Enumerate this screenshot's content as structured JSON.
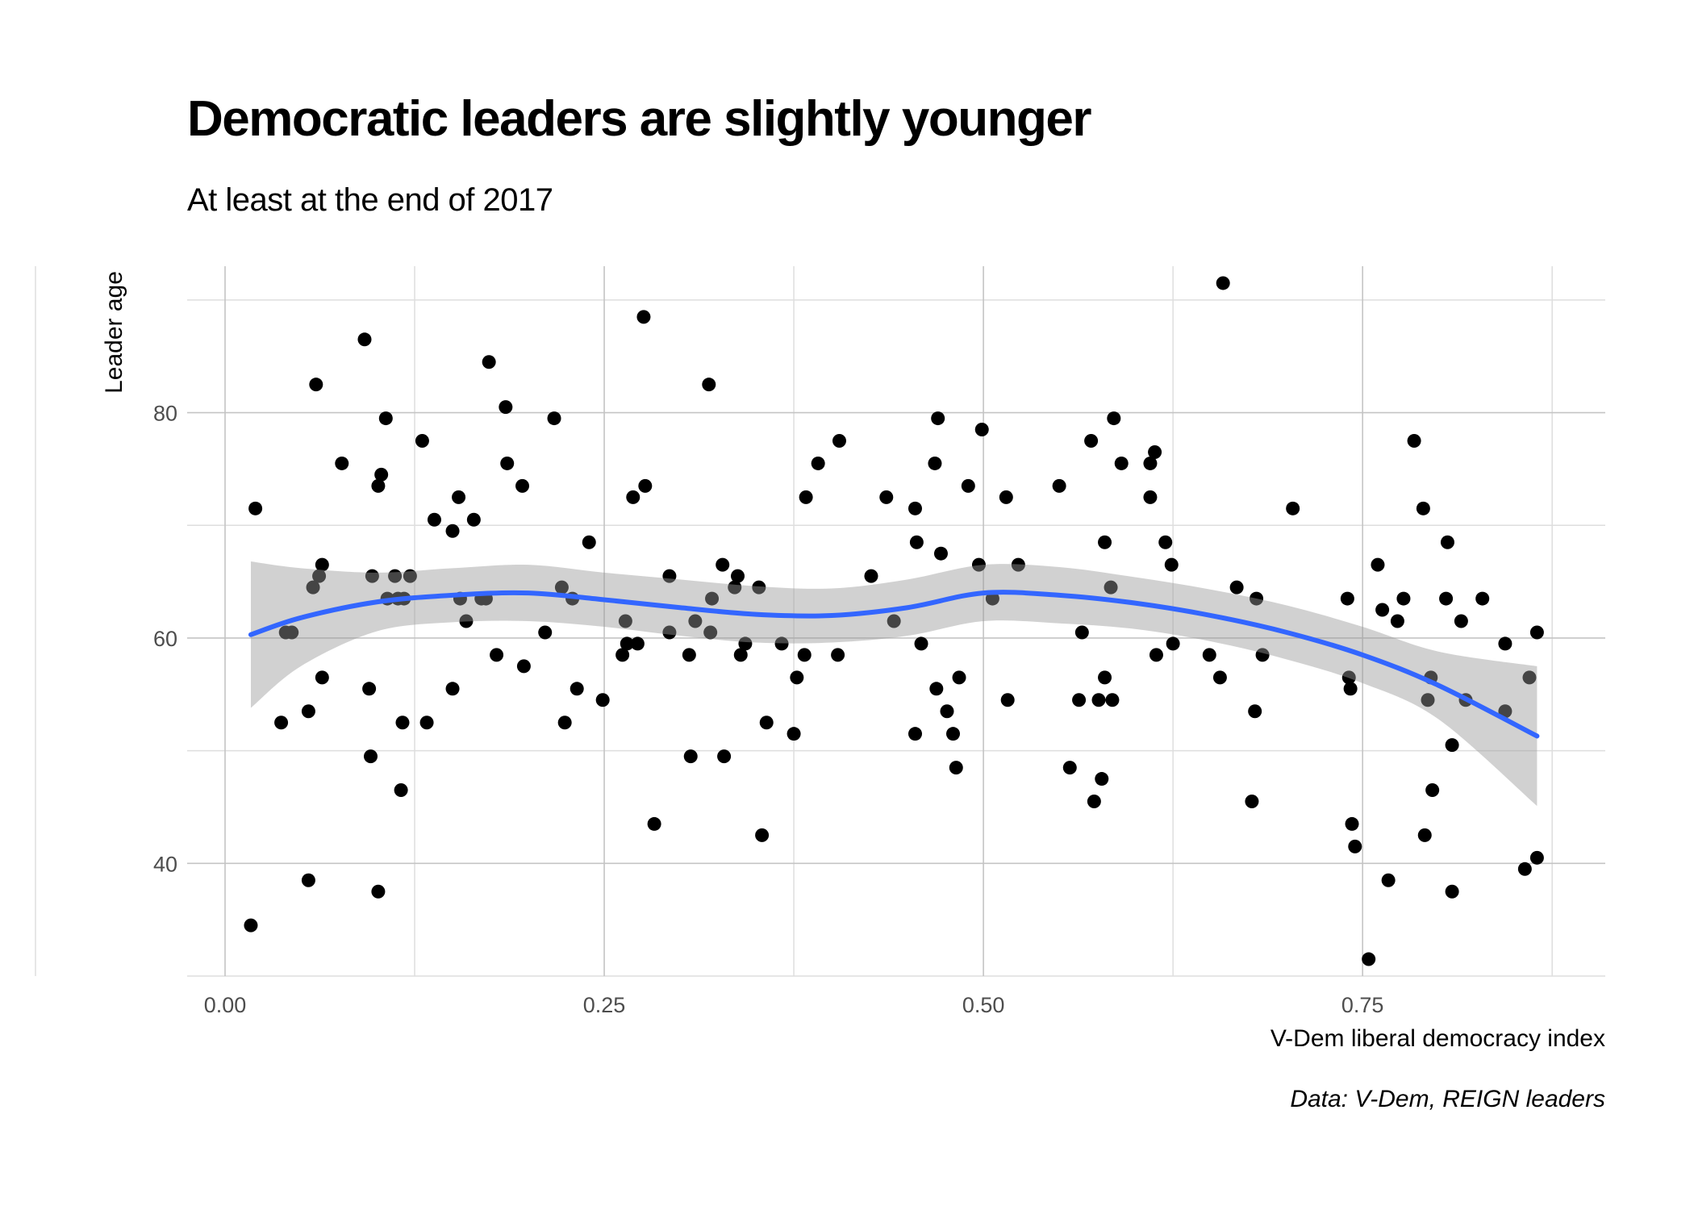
{
  "chart_data": {
    "type": "scatter",
    "title": "Democratic leaders are slightly younger",
    "subtitle": "At least at the end of 2017",
    "xlabel": "V-Dem liberal democracy index",
    "ylabel": "Leader age",
    "caption": "Data: V-Dem, REIGN leaders",
    "xlim": [
      -0.025,
      0.91
    ],
    "ylim": [
      30,
      93
    ],
    "x_ticks": [
      0.0,
      0.25,
      0.5,
      0.75
    ],
    "x_tick_labels": [
      "0.00",
      "0.25",
      "0.50",
      "0.75"
    ],
    "y_ticks": [
      40,
      60,
      80
    ],
    "y_tick_labels": [
      "40",
      "60",
      "80"
    ],
    "grid": true,
    "colors": {
      "points": "#000000",
      "smooth_line": "#3366FF",
      "confidence_band": "#999999"
    },
    "points": [
      [
        0.02,
        71.5
      ],
      [
        0.017,
        34.5
      ],
      [
        0.037,
        52.5
      ],
      [
        0.04,
        60.5
      ],
      [
        0.044,
        60.5
      ],
      [
        0.055,
        53.5
      ],
      [
        0.055,
        38.5
      ],
      [
        0.058,
        64.5
      ],
      [
        0.06,
        82.5
      ],
      [
        0.062,
        65.5
      ],
      [
        0.064,
        66.5
      ],
      [
        0.064,
        56.5
      ],
      [
        0.077,
        75.5
      ],
      [
        0.092,
        86.5
      ],
      [
        0.095,
        55.5
      ],
      [
        0.096,
        49.5
      ],
      [
        0.097,
        65.5
      ],
      [
        0.101,
        73.5
      ],
      [
        0.101,
        37.5
      ],
      [
        0.103,
        74.5
      ],
      [
        0.106,
        79.5
      ],
      [
        0.107,
        63.5
      ],
      [
        0.112,
        65.5
      ],
      [
        0.114,
        63.5
      ],
      [
        0.116,
        46.5
      ],
      [
        0.117,
        52.5
      ],
      [
        0.118,
        63.5
      ],
      [
        0.122,
        65.5
      ],
      [
        0.13,
        77.5
      ],
      [
        0.133,
        52.5
      ],
      [
        0.138,
        70.5
      ],
      [
        0.15,
        69.5
      ],
      [
        0.15,
        55.5
      ],
      [
        0.154,
        72.5
      ],
      [
        0.155,
        63.5
      ],
      [
        0.159,
        61.5
      ],
      [
        0.164,
        70.5
      ],
      [
        0.169,
        63.5
      ],
      [
        0.172,
        63.5
      ],
      [
        0.174,
        84.5
      ],
      [
        0.179,
        58.5
      ],
      [
        0.185,
        80.5
      ],
      [
        0.186,
        75.5
      ],
      [
        0.196,
        73.5
      ],
      [
        0.197,
        57.5
      ],
      [
        0.211,
        60.5
      ],
      [
        0.217,
        79.5
      ],
      [
        0.222,
        64.5
      ],
      [
        0.224,
        52.5
      ],
      [
        0.229,
        63.5
      ],
      [
        0.232,
        55.5
      ],
      [
        0.24,
        68.5
      ],
      [
        0.249,
        54.5
      ],
      [
        0.262,
        58.5
      ],
      [
        0.264,
        61.5
      ],
      [
        0.265,
        59.5
      ],
      [
        0.269,
        72.5
      ],
      [
        0.272,
        59.5
      ],
      [
        0.276,
        88.5
      ],
      [
        0.277,
        73.5
      ],
      [
        0.283,
        43.5
      ],
      [
        0.293,
        65.5
      ],
      [
        0.293,
        60.5
      ],
      [
        0.306,
        58.5
      ],
      [
        0.307,
        49.5
      ],
      [
        0.31,
        61.5
      ],
      [
        0.319,
        82.5
      ],
      [
        0.32,
        60.5
      ],
      [
        0.321,
        63.5
      ],
      [
        0.328,
        66.5
      ],
      [
        0.329,
        49.5
      ],
      [
        0.336,
        64.5
      ],
      [
        0.338,
        65.5
      ],
      [
        0.34,
        58.5
      ],
      [
        0.343,
        59.5
      ],
      [
        0.352,
        64.5
      ],
      [
        0.354,
        42.5
      ],
      [
        0.357,
        52.5
      ],
      [
        0.367,
        59.5
      ],
      [
        0.375,
        51.5
      ],
      [
        0.377,
        56.5
      ],
      [
        0.382,
        58.5
      ],
      [
        0.383,
        72.5
      ],
      [
        0.391,
        75.5
      ],
      [
        0.404,
        58.5
      ],
      [
        0.405,
        77.5
      ],
      [
        0.426,
        65.5
      ],
      [
        0.436,
        72.5
      ],
      [
        0.441,
        61.5
      ],
      [
        0.455,
        51.5
      ],
      [
        0.455,
        71.5
      ],
      [
        0.456,
        68.5
      ],
      [
        0.459,
        59.5
      ],
      [
        0.468,
        75.5
      ],
      [
        0.469,
        55.5
      ],
      [
        0.47,
        79.5
      ],
      [
        0.472,
        67.5
      ],
      [
        0.476,
        53.5
      ],
      [
        0.48,
        51.5
      ],
      [
        0.482,
        48.5
      ],
      [
        0.484,
        56.5
      ],
      [
        0.49,
        73.5
      ],
      [
        0.497,
        66.5
      ],
      [
        0.499,
        78.5
      ],
      [
        0.506,
        63.5
      ],
      [
        0.515,
        72.5
      ],
      [
        0.516,
        54.5
      ],
      [
        0.523,
        66.5
      ],
      [
        0.55,
        73.5
      ],
      [
        0.557,
        48.5
      ],
      [
        0.563,
        54.5
      ],
      [
        0.565,
        60.5
      ],
      [
        0.571,
        77.5
      ],
      [
        0.573,
        45.5
      ],
      [
        0.576,
        54.5
      ],
      [
        0.578,
        47.5
      ],
      [
        0.58,
        56.5
      ],
      [
        0.58,
        68.5
      ],
      [
        0.584,
        64.5
      ],
      [
        0.585,
        54.5
      ],
      [
        0.586,
        79.5
      ],
      [
        0.591,
        75.5
      ],
      [
        0.61,
        75.5
      ],
      [
        0.61,
        72.5
      ],
      [
        0.613,
        76.5
      ],
      [
        0.614,
        58.5
      ],
      [
        0.62,
        68.5
      ],
      [
        0.624,
        66.5
      ],
      [
        0.625,
        59.5
      ],
      [
        0.649,
        58.5
      ],
      [
        0.656,
        56.5
      ],
      [
        0.658,
        91.5
      ],
      [
        0.667,
        64.5
      ],
      [
        0.677,
        45.5
      ],
      [
        0.679,
        53.5
      ],
      [
        0.68,
        63.5
      ],
      [
        0.684,
        58.5
      ],
      [
        0.704,
        71.5
      ],
      [
        0.74,
        63.5
      ],
      [
        0.741,
        56.5
      ],
      [
        0.742,
        55.5
      ],
      [
        0.743,
        43.5
      ],
      [
        0.745,
        41.5
      ],
      [
        0.754,
        31.5
      ],
      [
        0.76,
        66.5
      ],
      [
        0.763,
        62.5
      ],
      [
        0.767,
        38.5
      ],
      [
        0.773,
        61.5
      ],
      [
        0.777,
        63.5
      ],
      [
        0.784,
        77.5
      ],
      [
        0.79,
        71.5
      ],
      [
        0.791,
        42.5
      ],
      [
        0.793,
        54.5
      ],
      [
        0.795,
        56.5
      ],
      [
        0.796,
        46.5
      ],
      [
        0.805,
        63.5
      ],
      [
        0.806,
        68.5
      ],
      [
        0.809,
        50.5
      ],
      [
        0.809,
        37.5
      ],
      [
        0.815,
        61.5
      ],
      [
        0.818,
        54.5
      ],
      [
        0.829,
        63.5
      ],
      [
        0.844,
        59.5
      ],
      [
        0.844,
        53.5
      ],
      [
        0.857,
        39.5
      ],
      [
        0.86,
        56.5
      ],
      [
        0.865,
        60.5
      ],
      [
        0.865,
        40.5
      ]
    ],
    "smooth": {
      "x": [
        0.017,
        0.05,
        0.1,
        0.15,
        0.2,
        0.25,
        0.3,
        0.35,
        0.4,
        0.45,
        0.5,
        0.55,
        0.6,
        0.65,
        0.7,
        0.75,
        0.8,
        0.865
      ],
      "y": [
        60.3,
        61.8,
        63.2,
        63.8,
        64.0,
        63.4,
        62.7,
        62.1,
        62.0,
        62.7,
        64.0,
        63.8,
        63.1,
        62.0,
        60.5,
        58.5,
        55.8,
        51.3
      ],
      "lower": [
        53.8,
        57.5,
        60.6,
        61.4,
        61.5,
        61.0,
        60.2,
        59.6,
        59.6,
        60.2,
        61.5,
        61.3,
        60.8,
        59.7,
        58.1,
        56.0,
        52.8,
        45.1
      ],
      "upper": [
        66.8,
        66.2,
        65.8,
        66.2,
        66.5,
        65.8,
        65.2,
        64.6,
        64.4,
        65.2,
        66.5,
        66.3,
        65.4,
        64.3,
        62.9,
        61.0,
        58.8,
        57.5
      ]
    }
  }
}
